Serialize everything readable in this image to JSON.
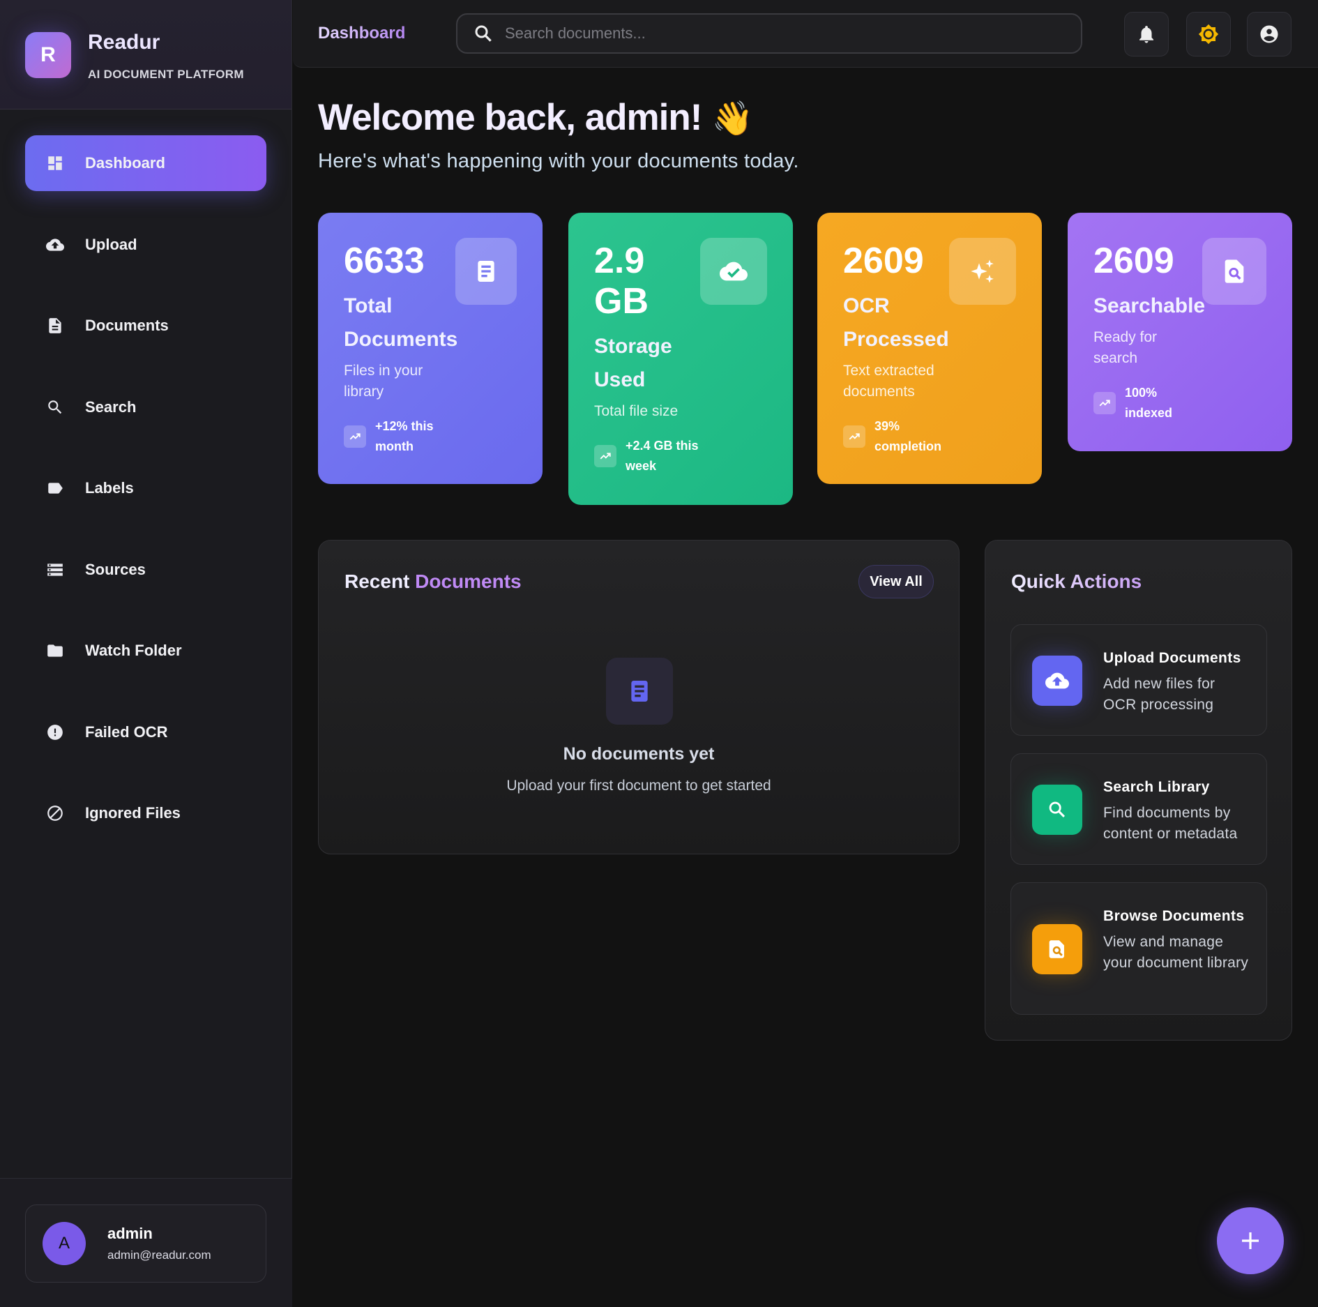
{
  "brand": {
    "logo_letter": "R",
    "name": "Readur",
    "tagline": "AI DOCUMENT PLATFORM"
  },
  "sidebar": {
    "items": [
      {
        "label": "Dashboard",
        "icon": "dashboard-icon",
        "active": true
      },
      {
        "label": "Upload",
        "icon": "cloud-upload-icon"
      },
      {
        "label": "Documents",
        "icon": "document-icon"
      },
      {
        "label": "Search",
        "icon": "search-icon"
      },
      {
        "label": "Labels",
        "icon": "label-icon"
      },
      {
        "label": "Sources",
        "icon": "storage-icon"
      },
      {
        "label": "Watch Folder",
        "icon": "folder-icon"
      },
      {
        "label": "Failed OCR",
        "icon": "error-icon"
      },
      {
        "label": "Ignored Files",
        "icon": "block-icon"
      }
    ]
  },
  "user": {
    "initial": "A",
    "name": "admin",
    "email": "admin@readur.com"
  },
  "header": {
    "title": "Dashboard",
    "search_placeholder": "Search documents..."
  },
  "main": {
    "welcome": "Welcome back, admin!",
    "wave": "👋",
    "subtitle": "Here's what's happening with your documents today."
  },
  "stats": [
    {
      "value": "6633",
      "label": "Total Documents",
      "desc": "Files in your library",
      "trend": "+12% this month",
      "color": "#6f6ff0",
      "icon": "document-icon"
    },
    {
      "value": "2.9 GB",
      "label": "Storage Used",
      "desc": "Total file size",
      "trend": "+2.4 GB this week",
      "color": "#22bb88",
      "icon": "cloud-done-icon"
    },
    {
      "value": "2609",
      "label": "OCR Processed",
      "desc": "Text extracted documents",
      "trend": "39% completion",
      "color": "#f4a520",
      "icon": "sparkle-icon"
    },
    {
      "value": "2609",
      "label": "Searchable",
      "desc": "Ready for search",
      "trend": "100% indexed",
      "color": "#9466f2",
      "icon": "find-in-page-icon"
    }
  ],
  "recent": {
    "title_a": "Recent",
    "title_b": "Documents",
    "view_all": "View All",
    "empty_title": "No documents yet",
    "empty_sub": "Upload your first document to get started"
  },
  "quick": {
    "title": "Quick Actions",
    "items": [
      {
        "title": "Upload Documents",
        "desc": "Add new files for OCR processing",
        "color": "#6366f1"
      },
      {
        "title": "Search Library",
        "desc": "Find documents by content or metadata",
        "color": "#10b981"
      },
      {
        "title": "Browse Documents",
        "desc": "View and manage your document library",
        "color": "#f59e0b"
      }
    ]
  }
}
